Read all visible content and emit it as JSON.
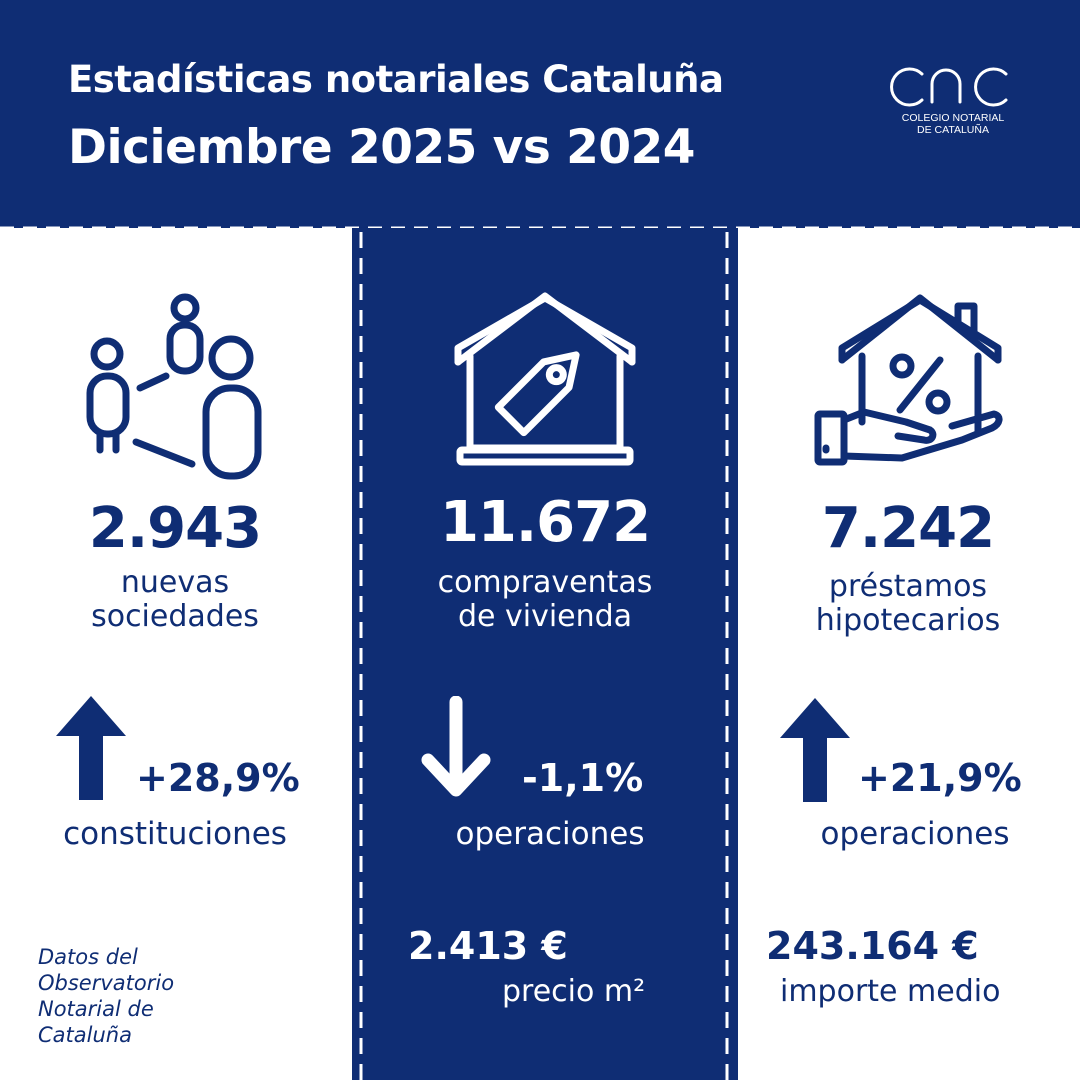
{
  "header": {
    "title_line1": "Estadísticas notariales Cataluña",
    "title_line2": "Diciembre 2025 vs 2024",
    "logo_line1": "COLEGIO NOTARIAL",
    "logo_line2": "DE CATALUÑA"
  },
  "columns": [
    {
      "icon": "people-network-icon",
      "value": "2.943",
      "label_line1": "nuevas",
      "label_line2": "sociedades",
      "trend": "up-arrow-icon",
      "change": "+28,9%",
      "change_label": "constituciones"
    },
    {
      "icon": "house-price-tag-icon",
      "value": "11.672",
      "label_line1": "compraventas",
      "label_line2": "de vivienda",
      "trend": "down-arrow-icon",
      "change": "-1,1%",
      "change_label": "operaciones",
      "extra_value": "2.413 €",
      "extra_label": "precio m²"
    },
    {
      "icon": "house-percent-hand-icon",
      "value": "7.242",
      "label_line1": "préstamos",
      "label_line2": "hipotecarios",
      "trend": "up-arrow-icon",
      "change": "+21,9%",
      "change_label": "operaciones",
      "extra_value": "243.164 €",
      "extra_label": "importe medio"
    }
  ],
  "source": {
    "line1": "Datos del",
    "line2": "Observatorio",
    "line3": "Notarial de",
    "line4": "Cataluña"
  },
  "colors": {
    "brand": "#0f2d74",
    "background": "#ffffff"
  }
}
